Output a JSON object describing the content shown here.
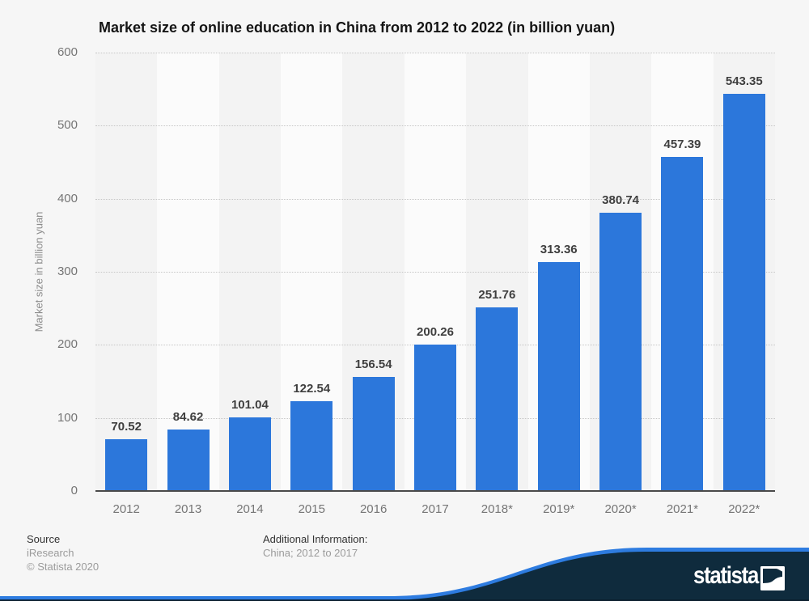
{
  "page": {
    "background": "#f6f6f6"
  },
  "chart_data": {
    "type": "bar",
    "title": "Market size of online education in China from 2012 to 2022 (in billion yuan)",
    "categories": [
      "2012",
      "2013",
      "2014",
      "2015",
      "2016",
      "2017",
      "2018*",
      "2019*",
      "2020*",
      "2021*",
      "2022*"
    ],
    "values": [
      70.52,
      84.62,
      101.04,
      122.54,
      156.54,
      200.26,
      251.76,
      313.36,
      380.74,
      457.39,
      543.35
    ],
    "value_labels": [
      "70.52",
      "84.62",
      "101.04",
      "122.54",
      "156.54",
      "200.26",
      "251.76",
      "313.36",
      "380.74",
      "457.39",
      "543.35"
    ],
    "xlabel": "",
    "ylabel": "Market size in billion yuan",
    "ylim": [
      0,
      600
    ],
    "yticks": [
      0,
      100,
      200,
      300,
      400,
      500,
      600
    ],
    "grid": "horizontal-dotted",
    "legend": "none",
    "bar_color": "#2c77db"
  },
  "footer": {
    "source_label": "Source",
    "source_name": "iResearch",
    "copyright": "© Statista 2020",
    "additional_info_label": "Additional Information:",
    "additional_info_value": "China; 2012 to 2017"
  },
  "branding": {
    "logo_text": "statista",
    "banner_color": "#0f2b3d",
    "accent_color": "#2e7ce0",
    "banner_bottom_color": "#0b1e2d"
  }
}
